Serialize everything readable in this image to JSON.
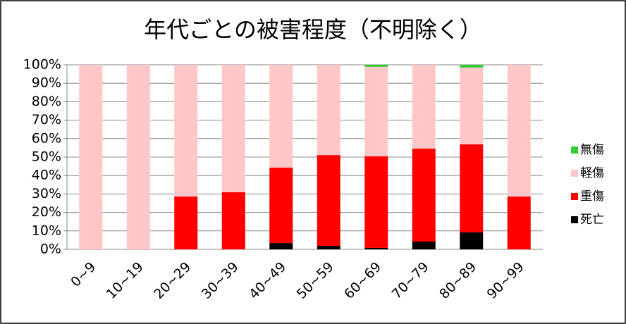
{
  "chart_data": {
    "type": "stacked_bar_100",
    "title": "年代ごとの被害程度（不明除く）",
    "categories": [
      "0~9",
      "10~19",
      "20~29",
      "30~39",
      "40~49",
      "50~59",
      "60~69",
      "70~79",
      "80~89",
      "90~99"
    ],
    "series": [
      {
        "name": "死亡",
        "color": "#000000",
        "values": [
          0,
          0,
          0,
          0,
          3.4,
          1.9,
          0.8,
          4.2,
          9.2,
          0
        ]
      },
      {
        "name": "重傷",
        "color": "#ff0000",
        "values": [
          0,
          0,
          28.6,
          31,
          40.9,
          49.2,
          49.6,
          50.4,
          47.7,
          28.6
        ]
      },
      {
        "name": "軽傷",
        "color": "#ffc7c7",
        "values": [
          100,
          100,
          71.4,
          69,
          55.7,
          48.9,
          48.5,
          45.4,
          41.6,
          71.4
        ]
      },
      {
        "name": "無傷",
        "color": "#33cc33",
        "values": [
          0,
          0,
          0,
          0,
          0,
          0,
          1.1,
          0,
          1.5,
          0
        ]
      }
    ],
    "ylim": [
      0,
      100
    ],
    "yticks": [
      {
        "value": 0,
        "label": "0%"
      },
      {
        "value": 10,
        "label": "10%"
      },
      {
        "value": 20,
        "label": "20%"
      },
      {
        "value": 30,
        "label": "30%"
      },
      {
        "value": 40,
        "label": "40%"
      },
      {
        "value": 50,
        "label": "50%"
      },
      {
        "value": 60,
        "label": "60%"
      },
      {
        "value": 70,
        "label": "70%"
      },
      {
        "value": 80,
        "label": "80%"
      },
      {
        "value": 90,
        "label": "90%"
      },
      {
        "value": 100,
        "label": "100%"
      }
    ],
    "grid": true,
    "legend": "right"
  }
}
